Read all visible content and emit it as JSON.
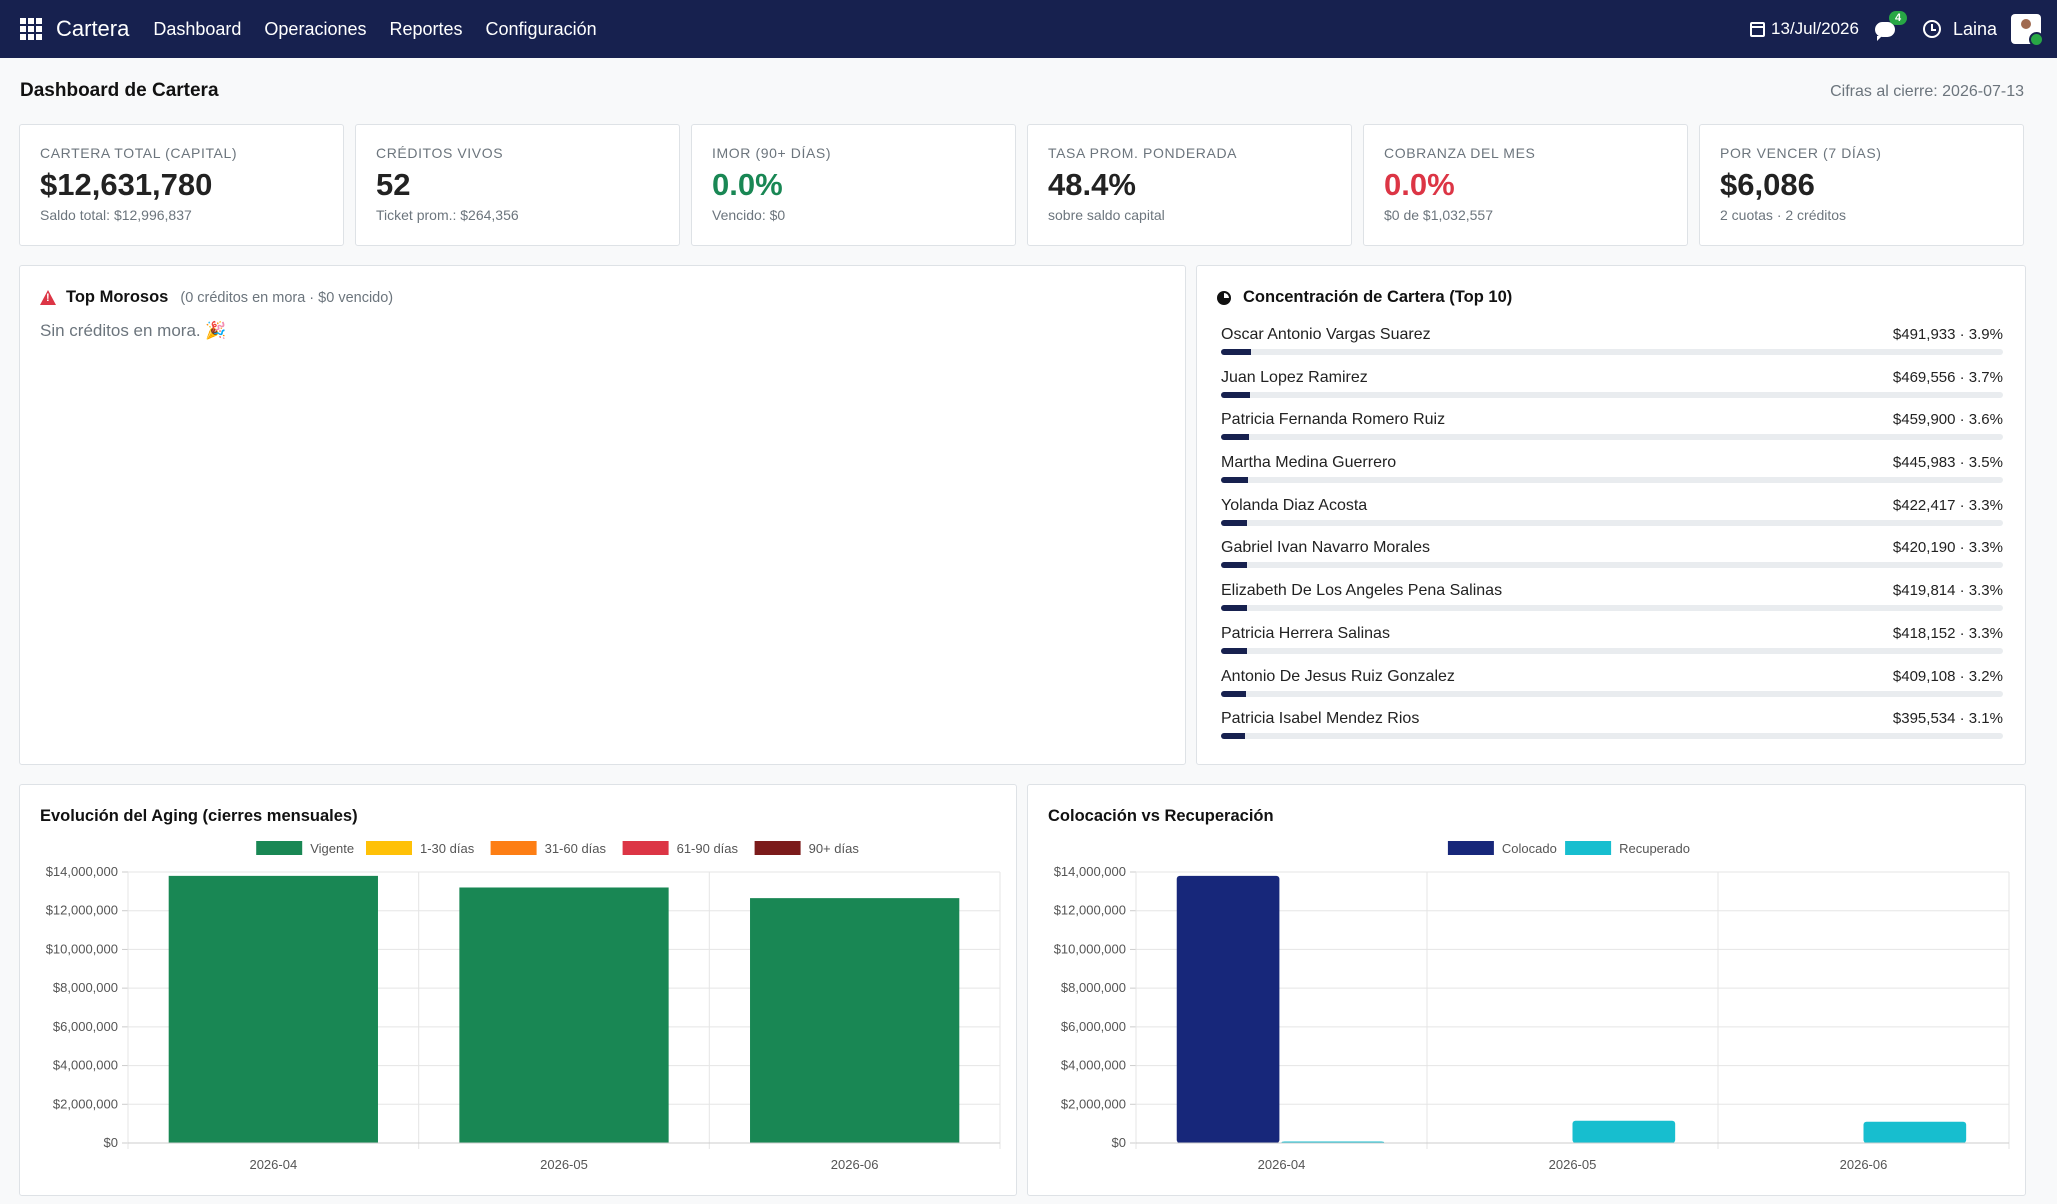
{
  "app": {
    "brand": "Cartera",
    "menu": [
      "Dashboard",
      "Operaciones",
      "Reportes",
      "Configuración"
    ],
    "date": "13/Jul/2026",
    "chat_badge": "4",
    "user": "Laina"
  },
  "header": {
    "title": "Dashboard de Cartera",
    "subtitle": "Cifras al cierre: 2026-07-13"
  },
  "kpis": [
    {
      "label": "CARTERA TOTAL (CAPITAL)",
      "value": "$12,631,780",
      "sub": "Saldo total: $12,996,837",
      "tone": ""
    },
    {
      "label": "CRÉDITOS VIVOS",
      "value": "52",
      "sub": "Ticket prom.: $264,356",
      "tone": ""
    },
    {
      "label": "IMOR (90+ DÍAS)",
      "value": "0.0%",
      "sub": "Vencido: $0",
      "tone": "green"
    },
    {
      "label": "TASA PROM. PONDERADA",
      "value": "48.4%",
      "sub": "sobre saldo capital",
      "tone": ""
    },
    {
      "label": "COBRANZA DEL MES",
      "value": "0.0%",
      "sub": "$0 de $1,032,557",
      "tone": "red"
    },
    {
      "label": "POR VENCER (7 DÍAS)",
      "value": "$6,086",
      "sub": "2 cuotas · 2 créditos",
      "tone": ""
    }
  ],
  "morosos": {
    "title": "Top Morosos",
    "summary": "(0 créditos en mora · $0 vencido)",
    "empty": "Sin créditos en mora. 🎉"
  },
  "concentracion": {
    "title": "Concentración de Cartera (Top 10)",
    "items": [
      {
        "name": "Oscar Antonio Vargas Suarez",
        "amount": "$491,933 · 3.9%",
        "pct": 3.9
      },
      {
        "name": "Juan Lopez Ramirez",
        "amount": "$469,556 · 3.7%",
        "pct": 3.7
      },
      {
        "name": "Patricia Fernanda Romero Ruiz",
        "amount": "$459,900 · 3.6%",
        "pct": 3.6
      },
      {
        "name": "Martha Medina Guerrero",
        "amount": "$445,983 · 3.5%",
        "pct": 3.5
      },
      {
        "name": "Yolanda Diaz Acosta",
        "amount": "$422,417 · 3.3%",
        "pct": 3.3
      },
      {
        "name": "Gabriel Ivan Navarro Morales",
        "amount": "$420,190 · 3.3%",
        "pct": 3.3
      },
      {
        "name": "Elizabeth De Los Angeles Pena Salinas",
        "amount": "$419,814 · 3.3%",
        "pct": 3.3
      },
      {
        "name": "Patricia Herrera Salinas",
        "amount": "$418,152 · 3.3%",
        "pct": 3.3
      },
      {
        "name": "Antonio De Jesus Ruiz Gonzalez",
        "amount": "$409,108 · 3.2%",
        "pct": 3.2
      },
      {
        "name": "Patricia Isabel Mendez Rios",
        "amount": "$395,534 · 3.1%",
        "pct": 3.1
      }
    ]
  },
  "chart_data": [
    {
      "type": "bar",
      "title": "Evolución del Aging (cierres mensuales)",
      "categories": [
        "2026-04",
        "2026-05",
        "2026-06"
      ],
      "series": [
        {
          "name": "Vigente",
          "color": "#198754",
          "values": [
            13800000,
            13200000,
            12650000
          ]
        },
        {
          "name": "1-30 días",
          "color": "#ffc107",
          "values": [
            0,
            0,
            0
          ]
        },
        {
          "name": "31-60 días",
          "color": "#fd7e14",
          "values": [
            0,
            0,
            0
          ]
        },
        {
          "name": "61-90 días",
          "color": "#dc3545",
          "values": [
            0,
            0,
            0
          ]
        },
        {
          "name": "90+ días",
          "color": "#7b1b1b",
          "values": [
            0,
            0,
            0
          ]
        }
      ],
      "stacked": true,
      "ylim": [
        0,
        14000000
      ],
      "yticks": [
        "$0",
        "$2,000,000",
        "$4,000,000",
        "$6,000,000",
        "$8,000,000",
        "$10,000,000",
        "$12,000,000",
        "$14,000,000"
      ],
      "legend": "top"
    },
    {
      "type": "bar",
      "title": "Colocación vs Recuperación",
      "categories": [
        "2026-04",
        "2026-05",
        "2026-06"
      ],
      "series": [
        {
          "name": "Colocado",
          "color": "#17277a",
          "values": [
            13800000,
            0,
            0
          ]
        },
        {
          "name": "Recuperado",
          "color": "#17becf",
          "values": [
            50000,
            1150000,
            1100000
          ]
        }
      ],
      "stacked": false,
      "ylim": [
        0,
        14000000
      ],
      "yticks": [
        "$0",
        "$2,000,000",
        "$4,000,000",
        "$6,000,000",
        "$8,000,000",
        "$10,000,000",
        "$12,000,000",
        "$14,000,000"
      ],
      "legend": "top"
    }
  ]
}
